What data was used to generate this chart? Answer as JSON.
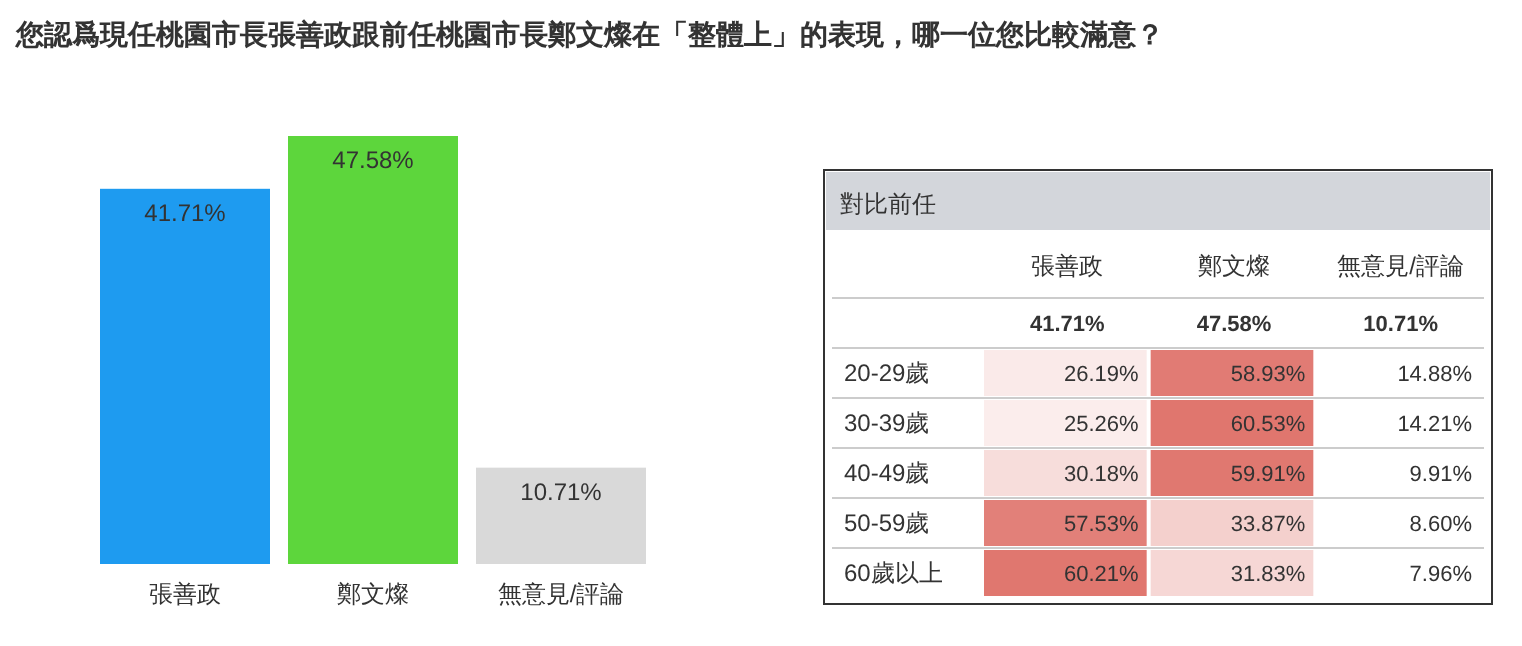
{
  "chart_data": [
    {
      "type": "bar",
      "title": "您認爲現任桃園市長張善政跟前任桃園市長鄭文燦在「整體上」的表現，哪一位您比較滿意？",
      "categories": [
        "張善政",
        "鄭文燦",
        "無意見/評論"
      ],
      "values": [
        41.71,
        47.58,
        10.71
      ],
      "colors": [
        "#1e9bf0",
        "#5dd63c",
        "#d9d9d9"
      ],
      "value_labels": [
        "41.71%",
        "47.58%",
        "10.71%"
      ]
    },
    {
      "type": "heatmap",
      "title": "對比前任",
      "categories": [
        "張善政",
        "鄭文燦",
        "無意見/評論"
      ],
      "y_categories": [
        null,
        "20-29歲",
        "30-39歲",
        "40-49歲",
        "50-59歲",
        "60歲以上"
      ],
      "cells": [
        [
          41.71,
          47.58,
          10.71
        ],
        [
          26.19,
          58.93,
          14.88
        ],
        [
          25.26,
          60.53,
          14.21
        ],
        [
          30.18,
          59.91,
          9.91
        ],
        [
          57.53,
          33.87,
          8.6
        ],
        [
          60.21,
          31.83,
          7.96
        ]
      ],
      "cell_labels": [
        [
          "41.71%",
          "47.58%",
          "10.71%"
        ],
        [
          "26.19%",
          "58.93%",
          "14.88%"
        ],
        [
          "25.26%",
          "60.53%",
          "14.21%"
        ],
        [
          "30.18%",
          "59.91%",
          "9.91%"
        ],
        [
          "57.53%",
          "33.87%",
          "8.60%"
        ],
        [
          "60.21%",
          "31.83%",
          "7.96%"
        ]
      ]
    }
  ]
}
